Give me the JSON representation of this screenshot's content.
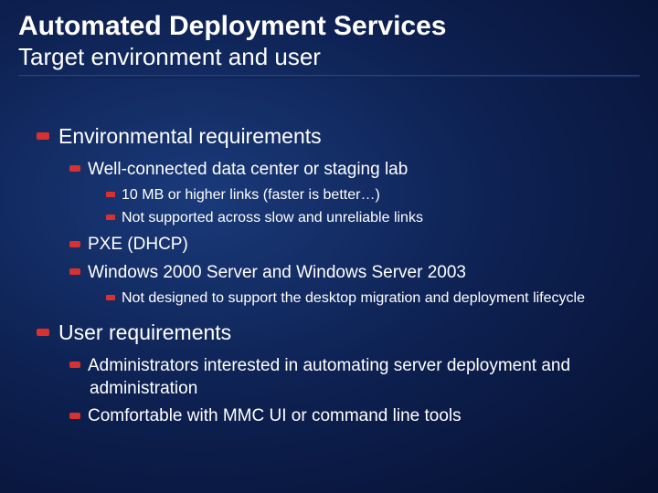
{
  "colors": {
    "bullet": "#d93030",
    "text": "#ffffff",
    "bg_inner": "#1a3a7a",
    "bg_mid": "#0d2050",
    "bg_outer": "#061030"
  },
  "title": "Automated Deployment Services",
  "subtitle": "Target environment and user",
  "sections": {
    "env": {
      "heading": "Environmental requirements",
      "items": {
        "datacenter": {
          "label": "Well-connected data center or staging lab",
          "sub": {
            "a": "10 MB or higher links (faster is better…)",
            "b": "Not supported across slow and unreliable links"
          }
        },
        "pxe": {
          "label": "PXE (DHCP)"
        },
        "winserver": {
          "label": "Windows 2000 Server and Windows Server 2003",
          "sub": {
            "a": "Not designed to support the desktop migration and deployment lifecycle"
          }
        }
      }
    },
    "user": {
      "heading": "User requirements",
      "items": {
        "admins": {
          "label": "Administrators interested in automating server deployment and administration"
        },
        "mmc": {
          "label": "Comfortable with MMC UI or command line tools"
        }
      }
    }
  }
}
